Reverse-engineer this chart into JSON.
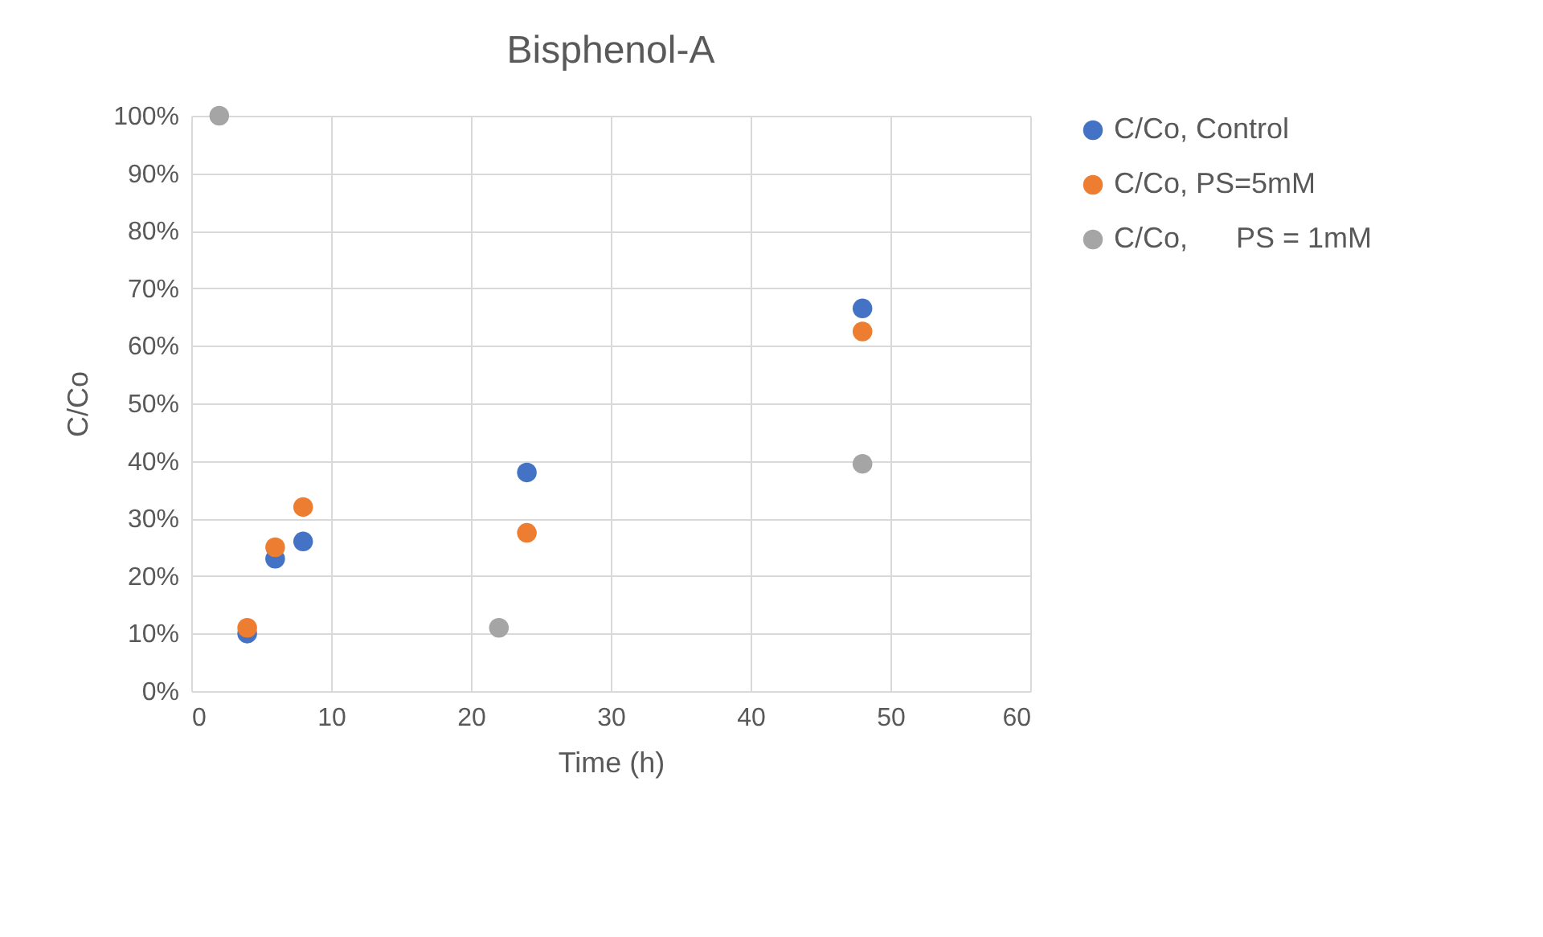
{
  "chart_data": {
    "type": "scatter",
    "title": "Bisphenol-A",
    "xlabel": "Time (h)",
    "ylabel": "C/Co",
    "marker": "circle",
    "grid": true,
    "legend": "right",
    "xlim": [
      0,
      60
    ],
    "xticks": [
      0,
      10,
      20,
      30,
      40,
      50,
      60
    ],
    "ylim": [
      0,
      100
    ],
    "yticks": [
      {
        "value": 0,
        "label": "0%"
      },
      {
        "value": 10,
        "label": "10%"
      },
      {
        "value": 20,
        "label": "20%"
      },
      {
        "value": 30,
        "label": "30%"
      },
      {
        "value": 40,
        "label": "40%"
      },
      {
        "value": 50,
        "label": "50%"
      },
      {
        "value": 60,
        "label": "60%"
      },
      {
        "value": 70,
        "label": "70%"
      },
      {
        "value": 80,
        "label": "80%"
      },
      {
        "value": 90,
        "label": "90%"
      },
      {
        "value": 100,
        "label": "100%"
      }
    ],
    "series": [
      {
        "name": "C/Co, Control",
        "color": "#4472c4",
        "x": [
          4,
          6,
          8,
          24,
          48
        ],
        "values": [
          10,
          23,
          26,
          38,
          66.5
        ]
      },
      {
        "name": "C/Co, PS=5mM",
        "color": "#ed7d31",
        "x": [
          4,
          6,
          8,
          24,
          48
        ],
        "values": [
          11,
          25,
          32,
          27.5,
          62.5
        ]
      },
      {
        "name": "C/Co,      PS = 1mM",
        "color": "#a5a5a5",
        "x": [
          2,
          22,
          48
        ],
        "values": [
          100,
          11,
          39.5
        ]
      }
    ]
  }
}
